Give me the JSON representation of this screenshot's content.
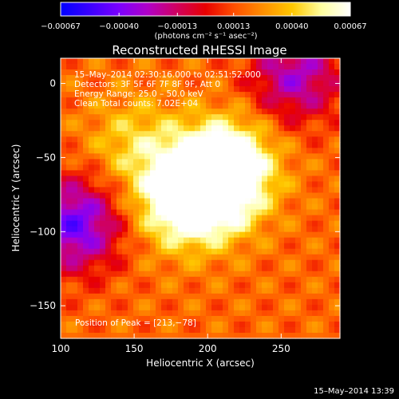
{
  "chart_data": {
    "type": "heatmap",
    "title": "Reconstructed RHESSI Image",
    "xlabel": "Heliocentric X (arcsec)",
    "ylabel": "Heliocentric Y (arcsec)",
    "xlim": [
      100,
      290
    ],
    "ylim": [
      -172,
      17
    ],
    "x_ticks": [
      100,
      150,
      200,
      250
    ],
    "y_ticks": [
      0,
      -50,
      -100,
      -150
    ],
    "x_tick_labels": [
      "100",
      "150",
      "200",
      "250"
    ],
    "y_tick_labels": [
      "0",
      "−50",
      "−100",
      "−150"
    ],
    "annotations": [
      "15–May–2014 02:30:16.000 to 02:51:52.000",
      "Detectors: 3F 5F 6F 7F 8F 9F, Att 0",
      "Energy Range: 25.0 – 50.0 keV",
      "Clean     Total counts: 7.02E+04"
    ],
    "peak_label": "Position of Peak = [213,−78]",
    "peak": [
      213,
      -78
    ],
    "colorbar": {
      "ticks": [
        -0.00067,
        -0.0004,
        -0.00013,
        0.00013,
        0.0004,
        0.00067
      ],
      "tick_labels": [
        "−0.00067",
        "−0.00040",
        "−0.00013",
        "0.00013",
        "0.00040",
        "0.00067"
      ],
      "unit_label": "(photons cm⁻² s⁻¹ asec⁻²)",
      "range": [
        -0.00067,
        0.00067
      ],
      "colors": [
        "#0000ff",
        "#3a00ff",
        "#7a00ff",
        "#b000c8",
        "#d00060",
        "#e80000",
        "#ff5000",
        "#ff9000",
        "#ffc800",
        "#ffffa0",
        "#ffffff"
      ]
    },
    "sources": [
      {
        "x": 200,
        "y": -70,
        "amp": 0.00067
      },
      {
        "x": 215,
        "y": -55,
        "amp": 0.0005
      },
      {
        "x": 180,
        "y": -80,
        "amp": 0.0004
      },
      {
        "x": 150,
        "y": -40,
        "amp": 0.00025
      },
      {
        "x": 110,
        "y": -95,
        "amp": -0.0006
      },
      {
        "x": 260,
        "y": 5,
        "amp": -0.00045
      }
    ]
  },
  "footer_timestamp": "15–May–2014 13:39"
}
